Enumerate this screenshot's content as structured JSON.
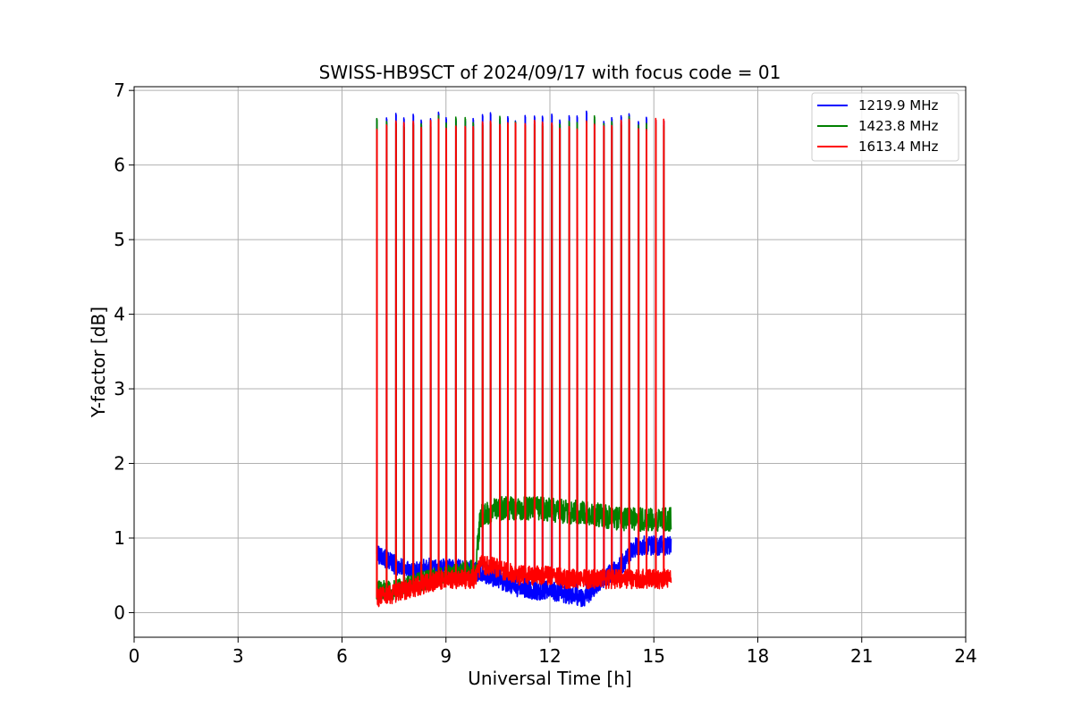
{
  "chart_data": {
    "type": "line",
    "title": "SWISS-HB9SCT of 2024/09/17 with focus code = 01",
    "xlabel": "Universal Time [h]",
    "ylabel": "Y-factor [dB]",
    "xlim": [
      0,
      24
    ],
    "ylim": [
      -0.33,
      7.05
    ],
    "xticks": [
      0,
      3,
      6,
      9,
      12,
      15,
      18,
      21,
      24
    ],
    "yticks": [
      0,
      1,
      2,
      3,
      4,
      5,
      6,
      7
    ],
    "grid": true,
    "legend_position": "top-right",
    "calibration_spike_times_h": [
      7.0,
      7.28,
      7.55,
      7.78,
      8.05,
      8.28,
      8.55,
      8.78,
      9.0,
      9.28,
      9.55,
      9.78,
      10.05,
      10.28,
      10.55,
      10.78,
      11.0,
      11.28,
      11.55,
      11.78,
      12.05,
      12.28,
      12.55,
      12.78,
      13.05,
      13.28,
      13.55,
      13.78,
      14.05,
      14.28,
      14.55,
      14.78,
      15.05,
      15.28
    ],
    "series": [
      {
        "name": "1219.9 MHz",
        "color": "#0000ff",
        "baseline": [
          [
            7.0,
            0.8
          ],
          [
            7.5,
            0.65
          ],
          [
            8.0,
            0.55
          ],
          [
            8.5,
            0.6
          ],
          [
            9.0,
            0.6
          ],
          [
            9.5,
            0.58
          ],
          [
            9.85,
            0.55
          ],
          [
            10.0,
            0.55
          ],
          [
            10.5,
            0.45
          ],
          [
            11.0,
            0.35
          ],
          [
            11.5,
            0.3
          ],
          [
            12.0,
            0.3
          ],
          [
            12.5,
            0.25
          ],
          [
            13.0,
            0.2
          ],
          [
            13.5,
            0.45
          ],
          [
            14.0,
            0.6
          ],
          [
            14.5,
            0.9
          ],
          [
            15.0,
            0.9
          ],
          [
            15.5,
            0.9
          ]
        ],
        "spike_peak": 6.65
      },
      {
        "name": "1423.8 MHz",
        "color": "#008000",
        "baseline": [
          [
            7.0,
            0.3
          ],
          [
            7.5,
            0.3
          ],
          [
            8.0,
            0.38
          ],
          [
            8.5,
            0.45
          ],
          [
            9.0,
            0.5
          ],
          [
            9.5,
            0.55
          ],
          [
            9.85,
            0.6
          ],
          [
            10.0,
            1.3
          ],
          [
            10.5,
            1.4
          ],
          [
            11.0,
            1.4
          ],
          [
            11.5,
            1.4
          ],
          [
            12.0,
            1.38
          ],
          [
            12.5,
            1.35
          ],
          [
            13.0,
            1.35
          ],
          [
            13.5,
            1.3
          ],
          [
            14.0,
            1.25
          ],
          [
            14.5,
            1.25
          ],
          [
            15.0,
            1.25
          ],
          [
            15.5,
            1.25
          ]
        ],
        "spike_peak": 6.6
      },
      {
        "name": "1613.4 MHz",
        "color": "#ff0000",
        "baseline": [
          [
            7.0,
            0.2
          ],
          [
            7.5,
            0.25
          ],
          [
            8.0,
            0.33
          ],
          [
            8.5,
            0.4
          ],
          [
            9.0,
            0.45
          ],
          [
            9.5,
            0.45
          ],
          [
            9.85,
            0.45
          ],
          [
            10.0,
            0.65
          ],
          [
            10.5,
            0.6
          ],
          [
            11.0,
            0.5
          ],
          [
            11.5,
            0.5
          ],
          [
            12.0,
            0.5
          ],
          [
            12.5,
            0.45
          ],
          [
            13.0,
            0.45
          ],
          [
            13.5,
            0.45
          ],
          [
            14.0,
            0.45
          ],
          [
            14.5,
            0.45
          ],
          [
            15.0,
            0.45
          ],
          [
            15.5,
            0.45
          ]
        ],
        "spike_peak": 6.55
      }
    ]
  }
}
